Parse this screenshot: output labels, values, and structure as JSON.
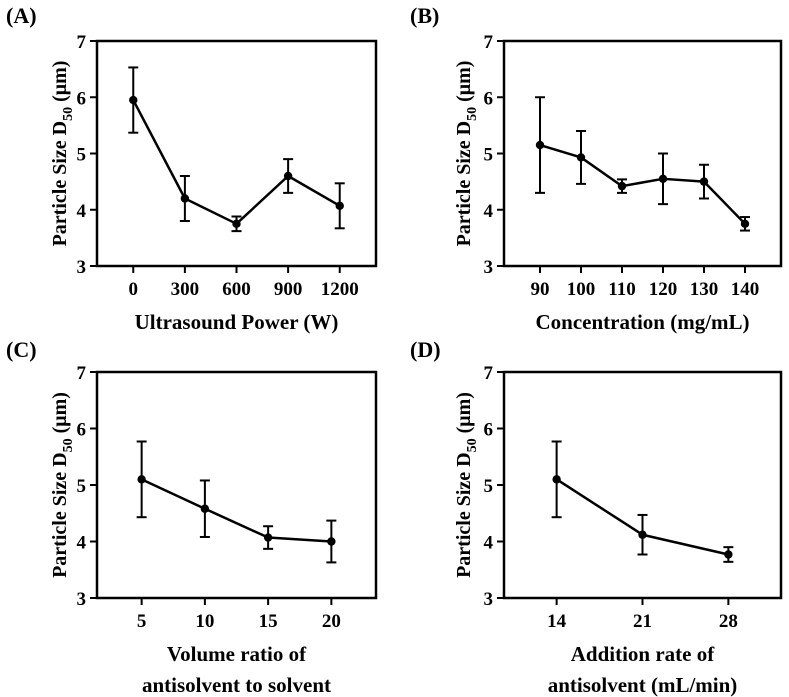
{
  "chart_data": [
    {
      "type": "line",
      "panel": "(A)",
      "x": [
        0,
        300,
        600,
        900,
        1200
      ],
      "y": [
        5.95,
        4.2,
        3.75,
        4.6,
        4.07
      ],
      "yerr": [
        0.58,
        0.4,
        0.13,
        0.3,
        0.4
      ],
      "tick_labels": [
        "0",
        "300",
        "600",
        "900",
        "1200"
      ],
      "xlabel_lines": [
        "Ultrasound Power (W)"
      ],
      "ylabel_prefix": "Particle Size D",
      "ylabel_sub": "50",
      "ylabel_suffix": " (μm)",
      "ylim": [
        3,
        7
      ],
      "yticks": [
        "3",
        "4",
        "5",
        "6",
        "7"
      ]
    },
    {
      "type": "line",
      "panel": "(B)",
      "x": [
        90,
        100,
        110,
        120,
        130,
        140
      ],
      "y": [
        5.15,
        4.93,
        4.42,
        4.55,
        4.5,
        3.75
      ],
      "yerr": [
        0.85,
        0.47,
        0.12,
        0.45,
        0.3,
        0.12
      ],
      "tick_labels": [
        "90",
        "100",
        "110",
        "120",
        "130",
        "140"
      ],
      "xlabel_lines": [
        "Concentration (mg/mL)"
      ],
      "ylabel_prefix": "Particle Size D",
      "ylabel_sub": "50",
      "ylabel_suffix": " (μm)",
      "ylim": [
        3,
        7
      ],
      "yticks": [
        "3",
        "4",
        "5",
        "6",
        "7"
      ]
    },
    {
      "type": "line",
      "panel": "(C)",
      "x": [
        5,
        10,
        15,
        20
      ],
      "y": [
        5.1,
        4.58,
        4.07,
        4.0
      ],
      "yerr": [
        0.67,
        0.5,
        0.2,
        0.37
      ],
      "tick_labels": [
        "5",
        "10",
        "15",
        "20"
      ],
      "xlabel_lines": [
        "Volume ratio of",
        "antisolvent to solvent"
      ],
      "ylabel_prefix": "Particle Size D",
      "ylabel_sub": "50",
      "ylabel_suffix": " (μm)",
      "ylim": [
        3,
        7
      ],
      "yticks": [
        "3",
        "4",
        "5",
        "6",
        "7"
      ]
    },
    {
      "type": "line",
      "panel": "(D)",
      "x": [
        14,
        21,
        28
      ],
      "y": [
        5.1,
        4.12,
        3.77
      ],
      "yerr": [
        0.67,
        0.35,
        0.13
      ],
      "tick_labels": [
        "14",
        "21",
        "28"
      ],
      "xlabel_lines": [
        "Addition rate of",
        "antisolvent (mL/min)"
      ],
      "ylabel_prefix": "Particle Size D",
      "ylabel_sub": "50",
      "ylabel_suffix": " (μm)",
      "ylim": [
        3,
        7
      ],
      "yticks": [
        "3",
        "4",
        "5",
        "6",
        "7"
      ]
    }
  ]
}
